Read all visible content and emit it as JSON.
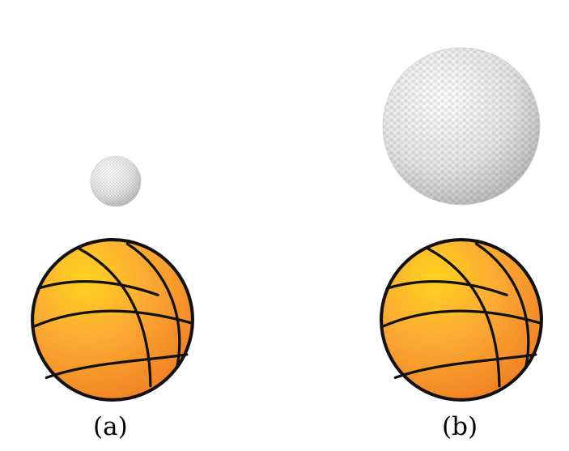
{
  "panels": [
    {
      "caption": "(a)",
      "golf_ball": "small",
      "basketball": "full-size"
    },
    {
      "caption": "(b)",
      "golf_ball": "large",
      "basketball": "full-size"
    }
  ],
  "colors": {
    "background": "#ffffff",
    "basketball_light": "#ffd21f",
    "basketball_mid": "#fbab33",
    "basketball_dark": "#f07d22",
    "basketball_seams": "#111111",
    "golf_ball_light": "#ffffff",
    "golf_ball_shade": "#b8b8b8"
  }
}
